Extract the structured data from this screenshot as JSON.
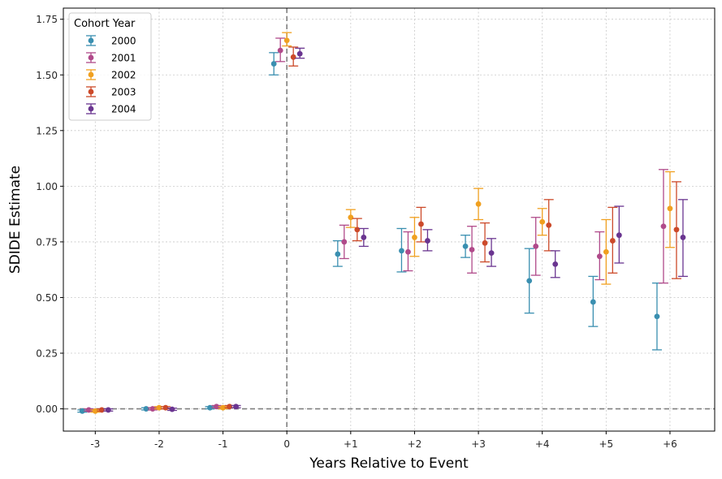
{
  "chart_data": {
    "type": "scatter",
    "xlabel": "Years Relative to Event",
    "ylabel": "SDIDE Estimate",
    "categories": [
      "-3",
      "-2",
      "-1",
      "0",
      "+1",
      "+2",
      "+3",
      "+4",
      "+5",
      "+6"
    ],
    "ylim": [
      -0.1,
      1.8
    ],
    "yticks": [
      0.0,
      0.25,
      0.5,
      0.75,
      1.0,
      1.25,
      1.5,
      1.75
    ],
    "ytick_labels": [
      "0.00",
      "0.25",
      "0.50",
      "0.75",
      "1.00",
      "1.25",
      "1.50",
      "1.75"
    ],
    "grid": true,
    "reference_lines": {
      "horizontal_y": 0,
      "vertical_x": "0",
      "style": "dashed",
      "color": "#808080"
    },
    "legend": {
      "title": "Cohort Year",
      "placement": "top-left"
    },
    "series": [
      {
        "name": "2000",
        "color": "#3a8fb0",
        "values": [
          -0.01,
          0.0,
          0.005,
          1.55,
          0.695,
          0.71,
          0.73,
          0.575,
          0.48,
          0.415
        ],
        "lower": [
          -0.015,
          -0.005,
          0.0,
          1.5,
          0.64,
          0.615,
          0.68,
          0.43,
          0.37,
          0.265
        ],
        "upper": [
          -0.005,
          0.005,
          0.01,
          1.6,
          0.755,
          0.81,
          0.78,
          0.72,
          0.595,
          0.565
        ]
      },
      {
        "name": "2001",
        "color": "#b04a8a",
        "values": [
          -0.005,
          0.0,
          0.01,
          1.61,
          0.75,
          0.705,
          0.715,
          0.73,
          0.685,
          0.82
        ],
        "lower": [
          -0.01,
          -0.005,
          0.005,
          1.56,
          0.675,
          0.62,
          0.61,
          0.6,
          0.58,
          0.565
        ],
        "upper": [
          0.0,
          0.005,
          0.015,
          1.665,
          0.825,
          0.795,
          0.82,
          0.86,
          0.795,
          1.075
        ]
      },
      {
        "name": "2002",
        "color": "#f0a020",
        "values": [
          -0.01,
          0.005,
          0.005,
          1.655,
          0.86,
          0.77,
          0.92,
          0.84,
          0.705,
          0.9
        ],
        "lower": [
          -0.015,
          0.0,
          0.0,
          1.63,
          0.815,
          0.685,
          0.85,
          0.78,
          0.56,
          0.725
        ],
        "upper": [
          -0.005,
          0.01,
          0.01,
          1.69,
          0.895,
          0.86,
          0.99,
          0.9,
          0.85,
          1.065
        ]
      },
      {
        "name": "2003",
        "color": "#cc4a2a",
        "values": [
          -0.005,
          0.005,
          0.01,
          1.58,
          0.805,
          0.83,
          0.745,
          0.825,
          0.755,
          0.805
        ],
        "lower": [
          -0.01,
          0.0,
          0.005,
          1.54,
          0.755,
          0.75,
          0.66,
          0.71,
          0.61,
          0.585
        ],
        "upper": [
          0.0,
          0.01,
          0.015,
          1.625,
          0.855,
          0.905,
          0.835,
          0.94,
          0.905,
          1.02
        ]
      },
      {
        "name": "2004",
        "color": "#6a3590",
        "values": [
          -0.005,
          -0.002,
          0.01,
          1.595,
          0.77,
          0.755,
          0.7,
          0.65,
          0.78,
          0.77
        ],
        "lower": [
          -0.01,
          -0.007,
          0.005,
          1.575,
          0.73,
          0.71,
          0.64,
          0.59,
          0.655,
          0.595
        ],
        "upper": [
          0.0,
          0.003,
          0.015,
          1.62,
          0.81,
          0.805,
          0.765,
          0.71,
          0.91,
          0.94
        ]
      }
    ]
  }
}
